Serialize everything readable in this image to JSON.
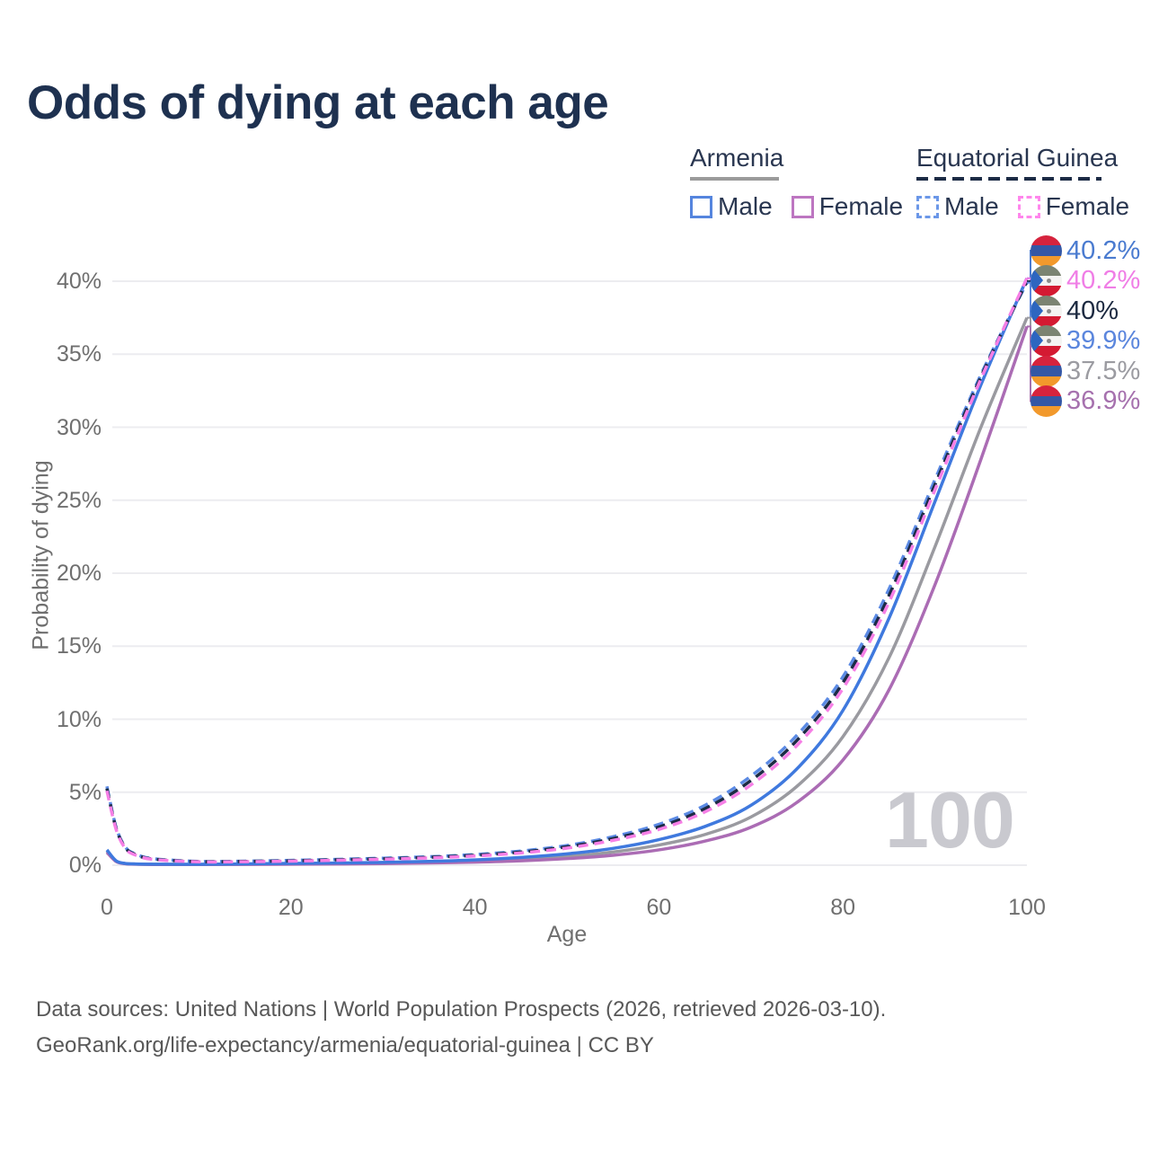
{
  "title": "Odds of dying at each age",
  "legend": {
    "groups": [
      {
        "label": "Armenia",
        "line_style": "solid",
        "underline_color": "#9b9b9b",
        "items": [
          {
            "label": "Male",
            "color": "#5585de"
          },
          {
            "label": "Female",
            "color": "#bd76c1"
          }
        ]
      },
      {
        "label": "Equatorial Guinea",
        "line_style": "dashed",
        "underline_color": "#1c2b45",
        "items": [
          {
            "label": "Male",
            "color": "#6b97e8"
          },
          {
            "label": "Female",
            "color": "#ff86ec"
          }
        ]
      }
    ]
  },
  "watermark": "100",
  "footer": {
    "line1": "Data sources: United Nations | World Population Prospects (2026, retrieved 2026-03-10).",
    "line2": "GeoRank.org/life-expectancy/armenia/equatorial-guinea | CC BY"
  },
  "flags": {
    "am": {
      "name": "armenia",
      "stripes": [
        "#d6233d",
        "#3457a5",
        "#f2992c"
      ]
    },
    "gq": {
      "name": "equatorial-guinea",
      "stripes": [
        "#7b8472",
        "#f4f4f2",
        "#d41a32"
      ],
      "triangle": "#2d66c0",
      "emblem": "#8b8b8b"
    }
  },
  "chart_data": {
    "type": "line",
    "title": "Odds of dying at each age",
    "xlabel": "Age",
    "ylabel": "Probability of dying",
    "xlim": [
      0,
      100
    ],
    "ylim_pct": [
      0,
      42
    ],
    "grid": true,
    "x_ticks": [
      0,
      20,
      40,
      60,
      80,
      100
    ],
    "y_ticks": [
      "0%",
      "5%",
      "10%",
      "15%",
      "20%",
      "25%",
      "30%",
      "35%",
      "40%"
    ],
    "series": [
      {
        "name": "Armenia (both sexes)",
        "color": "#9a9aa0",
        "dash": false,
        "points": [
          [
            0,
            0.97
          ],
          [
            1,
            0.28
          ],
          [
            2,
            0.11
          ],
          [
            3,
            0.08
          ],
          [
            5,
            0.06
          ],
          [
            10,
            0.05
          ],
          [
            15,
            0.07
          ],
          [
            20,
            0.095
          ],
          [
            25,
            0.12
          ],
          [
            30,
            0.15
          ],
          [
            35,
            0.2
          ],
          [
            40,
            0.28
          ],
          [
            45,
            0.41
          ],
          [
            50,
            0.6
          ],
          [
            55,
            0.9
          ],
          [
            60,
            1.38
          ],
          [
            65,
            2.1
          ],
          [
            70,
            3.3
          ],
          [
            75,
            5.4
          ],
          [
            80,
            8.8
          ],
          [
            85,
            14.2
          ],
          [
            90,
            21.8
          ],
          [
            95,
            30.0
          ],
          [
            100,
            37.5
          ]
        ]
      },
      {
        "name": "Armenia Female",
        "color": "#ab6cb4",
        "dash": false,
        "points": [
          [
            0,
            0.88
          ],
          [
            1,
            0.25
          ],
          [
            2,
            0.1
          ],
          [
            3,
            0.07
          ],
          [
            5,
            0.05
          ],
          [
            10,
            0.045
          ],
          [
            15,
            0.055
          ],
          [
            20,
            0.07
          ],
          [
            25,
            0.085
          ],
          [
            30,
            0.11
          ],
          [
            35,
            0.15
          ],
          [
            40,
            0.21
          ],
          [
            45,
            0.3
          ],
          [
            50,
            0.45
          ],
          [
            55,
            0.68
          ],
          [
            60,
            1.05
          ],
          [
            65,
            1.65
          ],
          [
            70,
            2.6
          ],
          [
            75,
            4.3
          ],
          [
            80,
            7.2
          ],
          [
            85,
            12.0
          ],
          [
            90,
            19.2
          ],
          [
            95,
            27.8
          ],
          [
            100,
            36.9
          ]
        ]
      },
      {
        "name": "Armenia Male",
        "color": "#3f79de",
        "dash": false,
        "points": [
          [
            0,
            1.05
          ],
          [
            1,
            0.3
          ],
          [
            2,
            0.12
          ],
          [
            3,
            0.09
          ],
          [
            5,
            0.07
          ],
          [
            10,
            0.06
          ],
          [
            15,
            0.09
          ],
          [
            20,
            0.12
          ],
          [
            25,
            0.15
          ],
          [
            30,
            0.19
          ],
          [
            35,
            0.26
          ],
          [
            40,
            0.36
          ],
          [
            45,
            0.53
          ],
          [
            50,
            0.78
          ],
          [
            55,
            1.15
          ],
          [
            60,
            1.75
          ],
          [
            65,
            2.65
          ],
          [
            70,
            4.1
          ],
          [
            75,
            6.6
          ],
          [
            80,
            10.6
          ],
          [
            85,
            16.9
          ],
          [
            90,
            24.9
          ],
          [
            95,
            32.9
          ],
          [
            100,
            40.2
          ]
        ]
      },
      {
        "name": "Equatorial Guinea Male",
        "color": "#5b8ae4",
        "dash": true,
        "points": [
          [
            0,
            5.4
          ],
          [
            1,
            2.6
          ],
          [
            2,
            1.25
          ],
          [
            3,
            0.8
          ],
          [
            5,
            0.45
          ],
          [
            10,
            0.26
          ],
          [
            15,
            0.28
          ],
          [
            20,
            0.33
          ],
          [
            25,
            0.4
          ],
          [
            30,
            0.48
          ],
          [
            35,
            0.58
          ],
          [
            40,
            0.73
          ],
          [
            45,
            0.97
          ],
          [
            50,
            1.35
          ],
          [
            55,
            1.95
          ],
          [
            60,
            2.8
          ],
          [
            65,
            4.1
          ],
          [
            70,
            6.1
          ],
          [
            75,
            8.9
          ],
          [
            80,
            12.9
          ],
          [
            85,
            18.9
          ],
          [
            90,
            26.4
          ],
          [
            95,
            33.6
          ],
          [
            100,
            39.9
          ]
        ]
      },
      {
        "name": "Equatorial Guinea (both sexes)",
        "color": "#1c2b45",
        "dash": true,
        "points": [
          [
            0,
            5.25
          ],
          [
            1,
            2.52
          ],
          [
            2,
            1.2
          ],
          [
            3,
            0.76
          ],
          [
            5,
            0.42
          ],
          [
            10,
            0.245
          ],
          [
            15,
            0.26
          ],
          [
            20,
            0.3
          ],
          [
            25,
            0.37
          ],
          [
            30,
            0.44
          ],
          [
            35,
            0.54
          ],
          [
            40,
            0.68
          ],
          [
            45,
            0.9
          ],
          [
            50,
            1.26
          ],
          [
            55,
            1.82
          ],
          [
            60,
            2.62
          ],
          [
            65,
            3.87
          ],
          [
            70,
            5.8
          ],
          [
            75,
            8.55
          ],
          [
            80,
            12.5
          ],
          [
            85,
            18.45
          ],
          [
            90,
            26.05
          ],
          [
            95,
            33.45
          ],
          [
            100,
            40.0
          ]
        ]
      },
      {
        "name": "Equatorial Guinea Female",
        "color": "#f67fe6",
        "dash": true,
        "points": [
          [
            0,
            5.1
          ],
          [
            1,
            2.45
          ],
          [
            2,
            1.15
          ],
          [
            3,
            0.72
          ],
          [
            5,
            0.4
          ],
          [
            10,
            0.23
          ],
          [
            15,
            0.24
          ],
          [
            20,
            0.28
          ],
          [
            25,
            0.34
          ],
          [
            30,
            0.41
          ],
          [
            35,
            0.5
          ],
          [
            40,
            0.63
          ],
          [
            45,
            0.84
          ],
          [
            50,
            1.17
          ],
          [
            55,
            1.7
          ],
          [
            60,
            2.45
          ],
          [
            65,
            3.65
          ],
          [
            70,
            5.5
          ],
          [
            75,
            8.2
          ],
          [
            80,
            12.1
          ],
          [
            85,
            18.0
          ],
          [
            90,
            25.7
          ],
          [
            95,
            33.3
          ],
          [
            100,
            40.2
          ]
        ]
      }
    ],
    "end_labels": [
      {
        "flag": "am",
        "text": "40.2%",
        "color": "#4a7bd0",
        "value": 40.2,
        "series": "Armenia Male"
      },
      {
        "flag": "gq",
        "text": "40.2%",
        "color": "#f07ee6",
        "value": 40.2,
        "series": "Equatorial Guinea Female"
      },
      {
        "flag": "gq",
        "text": "40%",
        "color": "#1c2940",
        "value": 40.0,
        "series": "Equatorial Guinea (both sexes)"
      },
      {
        "flag": "gq",
        "text": "39.9%",
        "color": "#5b86dd",
        "value": 39.9,
        "series": "Equatorial Guinea Male"
      },
      {
        "flag": "am",
        "text": "37.5%",
        "color": "#9b9ba1",
        "value": 37.5,
        "series": "Armenia (both sexes)"
      },
      {
        "flag": "am",
        "text": "36.9%",
        "color": "#a671ae",
        "value": 36.9,
        "series": "Armenia Female"
      }
    ]
  }
}
